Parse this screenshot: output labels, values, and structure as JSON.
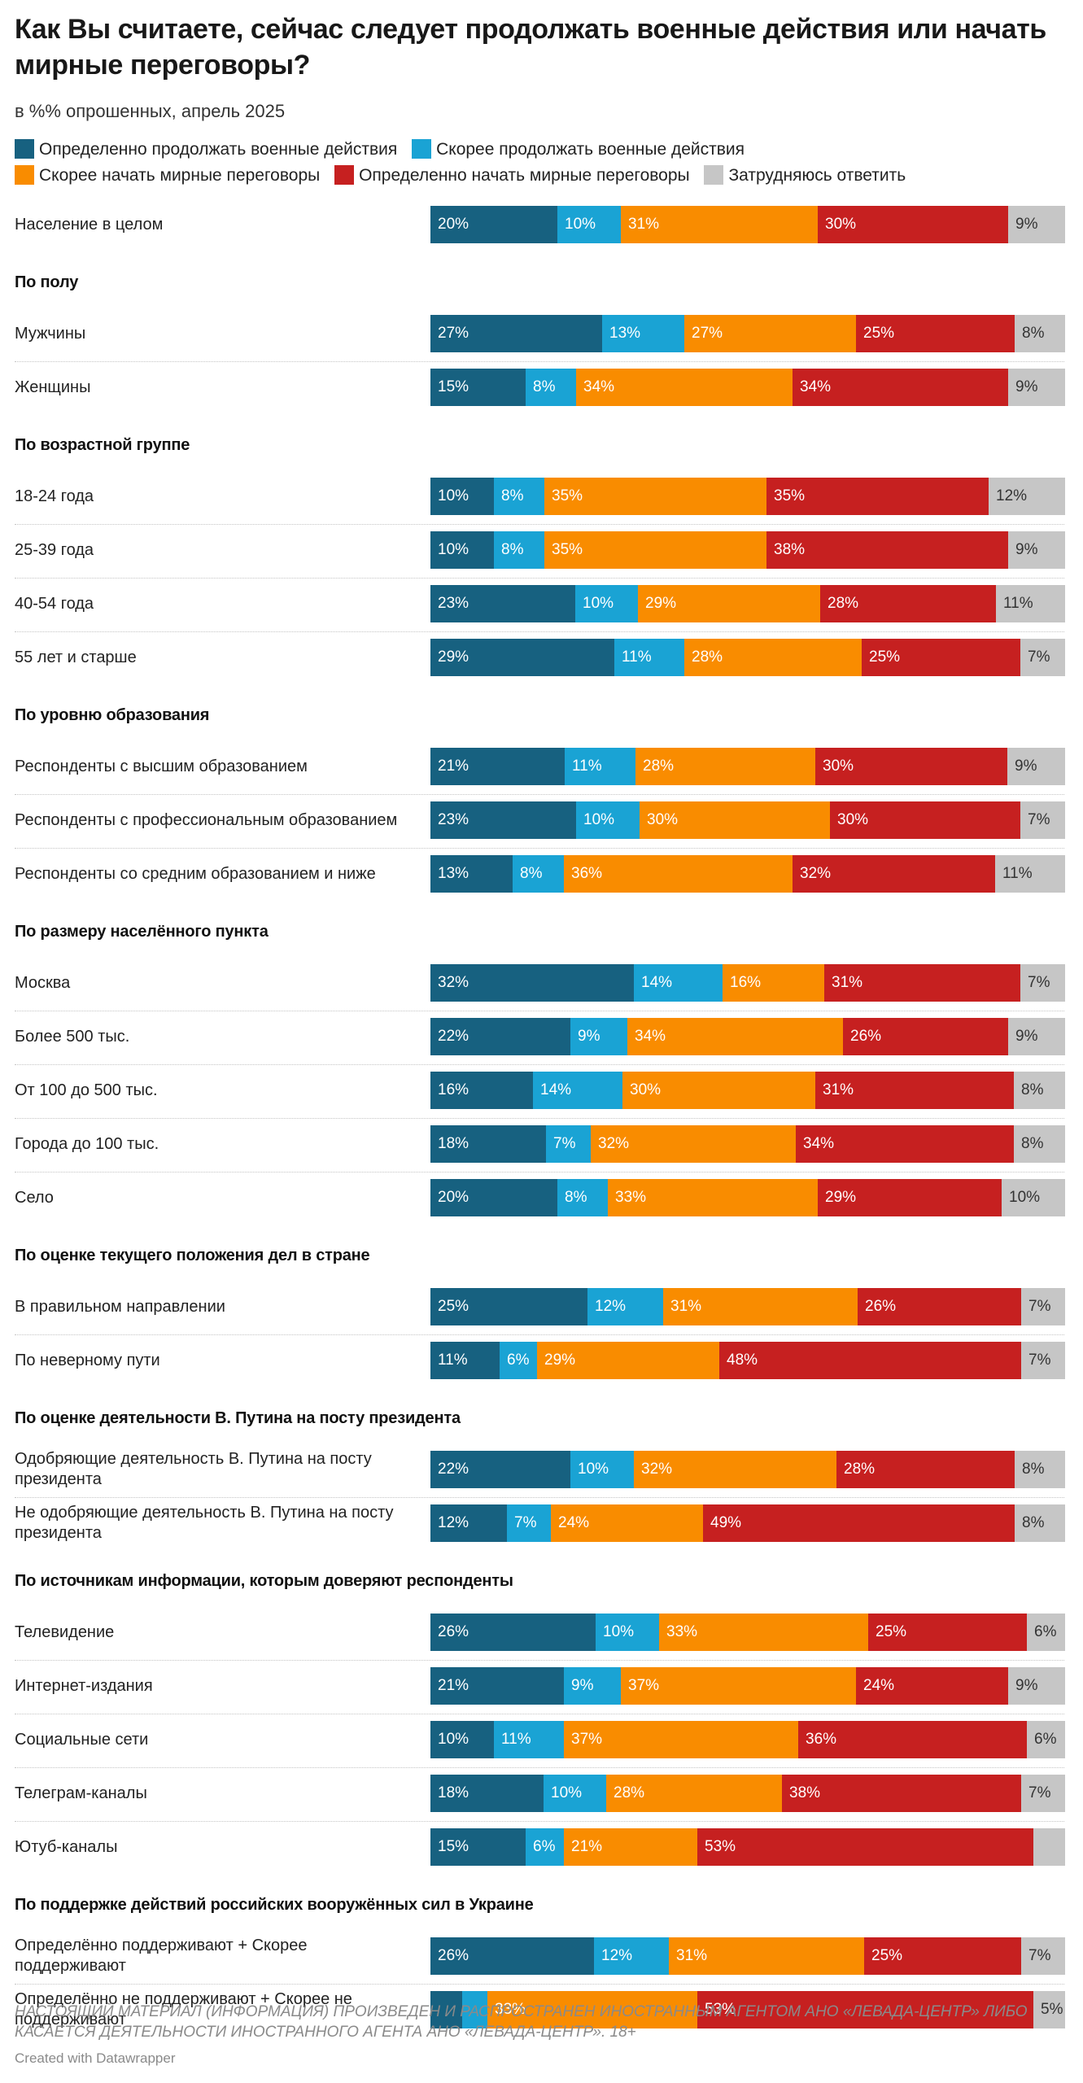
{
  "title": "Как Вы считаете, сейчас следует продолжать военные действия или начать мирные переговоры?",
  "subtitle": "в %% опрошенных, апрель 2025",
  "footer": "НАСТОЯЩИЙ МАТЕРИАЛ (ИНФОРМАЦИЯ) ПРОИЗВЕДЕН И РАСПРОСТРАНЕН ИНОСТРАННЫМ АГЕНТОМ АНО «ЛЕВАДА-ЦЕНТР» ЛИБО КАСАЕТСЯ ДЕЯТЕЛЬНОСТИ ИНОСТРАННОГО АГЕНТА АНО «ЛЕВАДА-ЦЕНТР». 18+",
  "credit": "Created with Datawrapper",
  "chart_data": {
    "type": "bar",
    "stacked": true,
    "orientation": "horizontal",
    "legend_position": "top",
    "xlim": [
      0,
      100
    ],
    "series": [
      {
        "name": "Определенно продолжать военные действия",
        "color": "#176180"
      },
      {
        "name": "Скорее продолжать военные действия",
        "color": "#1aa3d4"
      },
      {
        "name": "Скорее начать мирные переговоры",
        "color": "#f98c00"
      },
      {
        "name": "Определенно начать мирные переговоры",
        "color": "#c62020"
      },
      {
        "name": "Затрудняюсь ответить",
        "color": "#c6c6c6"
      }
    ],
    "groups": [
      {
        "title": "",
        "rows": [
          {
            "label": "Население в целом",
            "values": [
              20,
              10,
              31,
              30,
              9
            ]
          }
        ]
      },
      {
        "title": "По полу",
        "rows": [
          {
            "label": "Мужчины",
            "values": [
              27,
              13,
              27,
              25,
              8
            ]
          },
          {
            "label": "Женщины",
            "values": [
              15,
              8,
              34,
              34,
              9
            ]
          }
        ]
      },
      {
        "title": "По возрастной группе",
        "rows": [
          {
            "label": "18-24 года",
            "values": [
              10,
              8,
              35,
              35,
              12
            ]
          },
          {
            "label": "25-39 года",
            "values": [
              10,
              8,
              35,
              38,
              9
            ]
          },
          {
            "label": "40-54 года",
            "values": [
              23,
              10,
              29,
              28,
              11
            ]
          },
          {
            "label": "55 лет и старше",
            "values": [
              29,
              11,
              28,
              25,
              7
            ]
          }
        ]
      },
      {
        "title": "По уровню образования",
        "rows": [
          {
            "label": "Респонденты с высшим образованием",
            "values": [
              21,
              11,
              28,
              30,
              9
            ]
          },
          {
            "label": "Респонденты с профессиональным образованием",
            "values": [
              23,
              10,
              30,
              30,
              7
            ]
          },
          {
            "label": "Респонденты со средним образованием и ниже",
            "values": [
              13,
              8,
              36,
              32,
              11
            ]
          }
        ]
      },
      {
        "title": "По размеру населённого пункта",
        "rows": [
          {
            "label": "Москва",
            "values": [
              32,
              14,
              16,
              31,
              7
            ]
          },
          {
            "label": "Более 500 тыс.",
            "values": [
              22,
              9,
              34,
              26,
              9
            ]
          },
          {
            "label": "От 100 до 500 тыс.",
            "values": [
              16,
              14,
              30,
              31,
              8
            ]
          },
          {
            "label": "Города до 100 тыс.",
            "values": [
              18,
              7,
              32,
              34,
              8
            ]
          },
          {
            "label": "Село",
            "values": [
              20,
              8,
              33,
              29,
              10
            ]
          }
        ]
      },
      {
        "title": "По оценке текущего положения дел в стране",
        "rows": [
          {
            "label": "В правильном направлении",
            "values": [
              25,
              12,
              31,
              26,
              7
            ]
          },
          {
            "label": "По неверному пути",
            "values": [
              11,
              6,
              29,
              48,
              7
            ]
          }
        ]
      },
      {
        "title": "По оценке деятельности В. Путина на посту президента",
        "rows": [
          {
            "label": "Одобряющие деятельность В. Путина на посту президента",
            "values": [
              22,
              10,
              32,
              28,
              8
            ]
          },
          {
            "label": "Не одобряющие деятельность В. Путина на посту президента",
            "values": [
              12,
              7,
              24,
              49,
              8
            ]
          }
        ]
      },
      {
        "title": "По источникам информации, которым доверяют респонденты",
        "rows": [
          {
            "label": "Телевидение",
            "values": [
              26,
              10,
              33,
              25,
              6
            ]
          },
          {
            "label": "Интернет-издания",
            "values": [
              21,
              9,
              37,
              24,
              9
            ]
          },
          {
            "label": "Социальные сети",
            "values": [
              10,
              11,
              37,
              36,
              6
            ]
          },
          {
            "label": "Телеграм-каналы",
            "values": [
              18,
              10,
              28,
              38,
              7
            ]
          },
          {
            "label": "Ютуб-каналы",
            "values": [
              15,
              6,
              21,
              53,
              5
            ]
          }
        ]
      },
      {
        "title": "По поддержке действий российских вооружённых сил в Украине",
        "rows": [
          {
            "label": "Определённо поддерживают + Скорее поддерживают",
            "values": [
              26,
              12,
              31,
              25,
              7
            ]
          },
          {
            "label": "Определённо не поддерживают + Скорее не поддерживают",
            "values": [
              5,
              4,
              33,
              53,
              5
            ]
          }
        ]
      }
    ]
  }
}
